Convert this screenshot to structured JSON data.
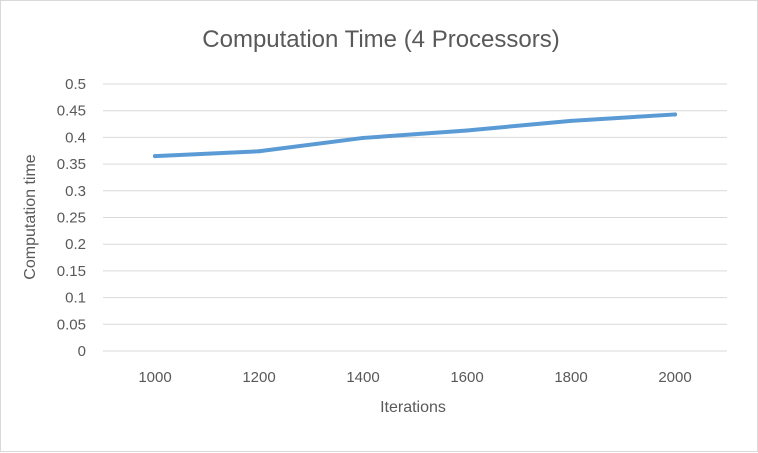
{
  "chart_data": {
    "type": "line",
    "title": "Computation Time (4 Processors)",
    "xlabel": "Iterations",
    "ylabel": "Computation time",
    "categories": [
      "1000",
      "1200",
      "1400",
      "1600",
      "1800",
      "2000"
    ],
    "series": [
      {
        "values": [
          0.365,
          0.374,
          0.399,
          0.413,
          0.431,
          0.443
        ]
      }
    ],
    "ylim": [
      0,
      0.5
    ],
    "yticks": [
      "0",
      "0.05",
      "0.1",
      "0.15",
      "0.2",
      "0.25",
      "0.3",
      "0.35",
      "0.4",
      "0.45",
      "0.5"
    ],
    "grid": true,
    "legend": "none",
    "colors": {
      "series": "#5b9bd5",
      "grid": "#d9d9d9",
      "text": "#595959"
    }
  }
}
